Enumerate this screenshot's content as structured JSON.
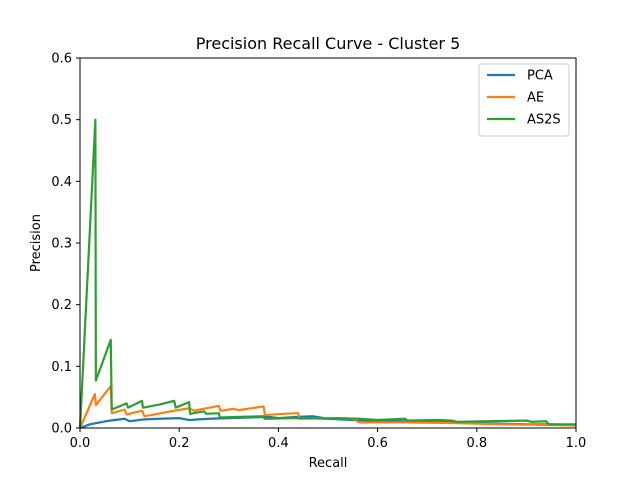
{
  "chart_data": {
    "type": "line",
    "title": "Precision Recall Curve - Cluster 5",
    "xlabel": "Recall",
    "ylabel": "Precision",
    "xlim": [
      0,
      1
    ],
    "ylim": [
      0,
      0.6
    ],
    "x_ticks": [
      "0.0",
      "0.2",
      "0.4",
      "0.6",
      "0.8",
      "1.0"
    ],
    "y_ticks": [
      "0.0",
      "0.1",
      "0.2",
      "0.3",
      "0.4",
      "0.5",
      "0.6"
    ],
    "grid": false,
    "legend_position": "top-right",
    "series": [
      {
        "name": "PCA",
        "color": "#1f77b4",
        "points": [
          [
            0,
            0
          ],
          [
            0.02,
            0.006
          ],
          [
            0.04,
            0.009
          ],
          [
            0.06,
            0.012
          ],
          [
            0.09,
            0.015
          ],
          [
            0.1,
            0.011
          ],
          [
            0.13,
            0.014
          ],
          [
            0.16,
            0.015
          ],
          [
            0.2,
            0.016
          ],
          [
            0.22,
            0.013
          ],
          [
            0.26,
            0.015
          ],
          [
            0.3,
            0.016
          ],
          [
            0.34,
            0.017
          ],
          [
            0.38,
            0.018
          ],
          [
            0.4,
            0.016
          ],
          [
            0.44,
            0.018
          ],
          [
            0.47,
            0.019
          ],
          [
            0.5,
            0.015
          ],
          [
            0.55,
            0.013
          ],
          [
            0.6,
            0.012
          ],
          [
            0.65,
            0.011
          ],
          [
            0.7,
            0.011
          ],
          [
            0.75,
            0.009
          ],
          [
            0.8,
            0.008
          ],
          [
            0.85,
            0.007
          ],
          [
            0.9,
            0.006
          ],
          [
            0.95,
            0.006
          ],
          [
            1.0,
            0.005
          ]
        ]
      },
      {
        "name": "AE",
        "color": "#ff7f0e",
        "points": [
          [
            0,
            0
          ],
          [
            0.03,
            0.055
          ],
          [
            0.032,
            0.037
          ],
          [
            0.062,
            0.068
          ],
          [
            0.064,
            0.024
          ],
          [
            0.09,
            0.03
          ],
          [
            0.094,
            0.022
          ],
          [
            0.125,
            0.028
          ],
          [
            0.13,
            0.019
          ],
          [
            0.19,
            0.028
          ],
          [
            0.22,
            0.032
          ],
          [
            0.23,
            0.028
          ],
          [
            0.28,
            0.036
          ],
          [
            0.283,
            0.028
          ],
          [
            0.31,
            0.031
          ],
          [
            0.32,
            0.029
          ],
          [
            0.37,
            0.035
          ],
          [
            0.373,
            0.021
          ],
          [
            0.41,
            0.023
          ],
          [
            0.44,
            0.024
          ],
          [
            0.442,
            0.015
          ],
          [
            0.5,
            0.016
          ],
          [
            0.55,
            0.015
          ],
          [
            0.563,
            0.009
          ],
          [
            0.65,
            0.009
          ],
          [
            0.75,
            0.008
          ],
          [
            0.85,
            0.006
          ],
          [
            0.94,
            0.005
          ],
          [
            1.0,
            0.004
          ]
        ]
      },
      {
        "name": "AS2S",
        "color": "#2ca02c",
        "points": [
          [
            0,
            0
          ],
          [
            0.031,
            0.5
          ],
          [
            0.032,
            0.077
          ],
          [
            0.062,
            0.143
          ],
          [
            0.064,
            0.03
          ],
          [
            0.094,
            0.04
          ],
          [
            0.097,
            0.033
          ],
          [
            0.125,
            0.044
          ],
          [
            0.127,
            0.033
          ],
          [
            0.16,
            0.038
          ],
          [
            0.19,
            0.044
          ],
          [
            0.193,
            0.033
          ],
          [
            0.22,
            0.042
          ],
          [
            0.222,
            0.023
          ],
          [
            0.25,
            0.027
          ],
          [
            0.255,
            0.023
          ],
          [
            0.28,
            0.024
          ],
          [
            0.282,
            0.017
          ],
          [
            0.32,
            0.018
          ],
          [
            0.37,
            0.019
          ],
          [
            0.372,
            0.015
          ],
          [
            0.43,
            0.016
          ],
          [
            0.45,
            0.016
          ],
          [
            0.5,
            0.015
          ],
          [
            0.52,
            0.016
          ],
          [
            0.563,
            0.015
          ],
          [
            0.6,
            0.013
          ],
          [
            0.656,
            0.015
          ],
          [
            0.66,
            0.012
          ],
          [
            0.72,
            0.013
          ],
          [
            0.75,
            0.012
          ],
          [
            0.76,
            0.01
          ],
          [
            0.82,
            0.011
          ],
          [
            0.9,
            0.012
          ],
          [
            0.91,
            0.01
          ],
          [
            0.94,
            0.011
          ],
          [
            0.945,
            0.006
          ],
          [
            1.0,
            0.006
          ]
        ]
      }
    ]
  }
}
